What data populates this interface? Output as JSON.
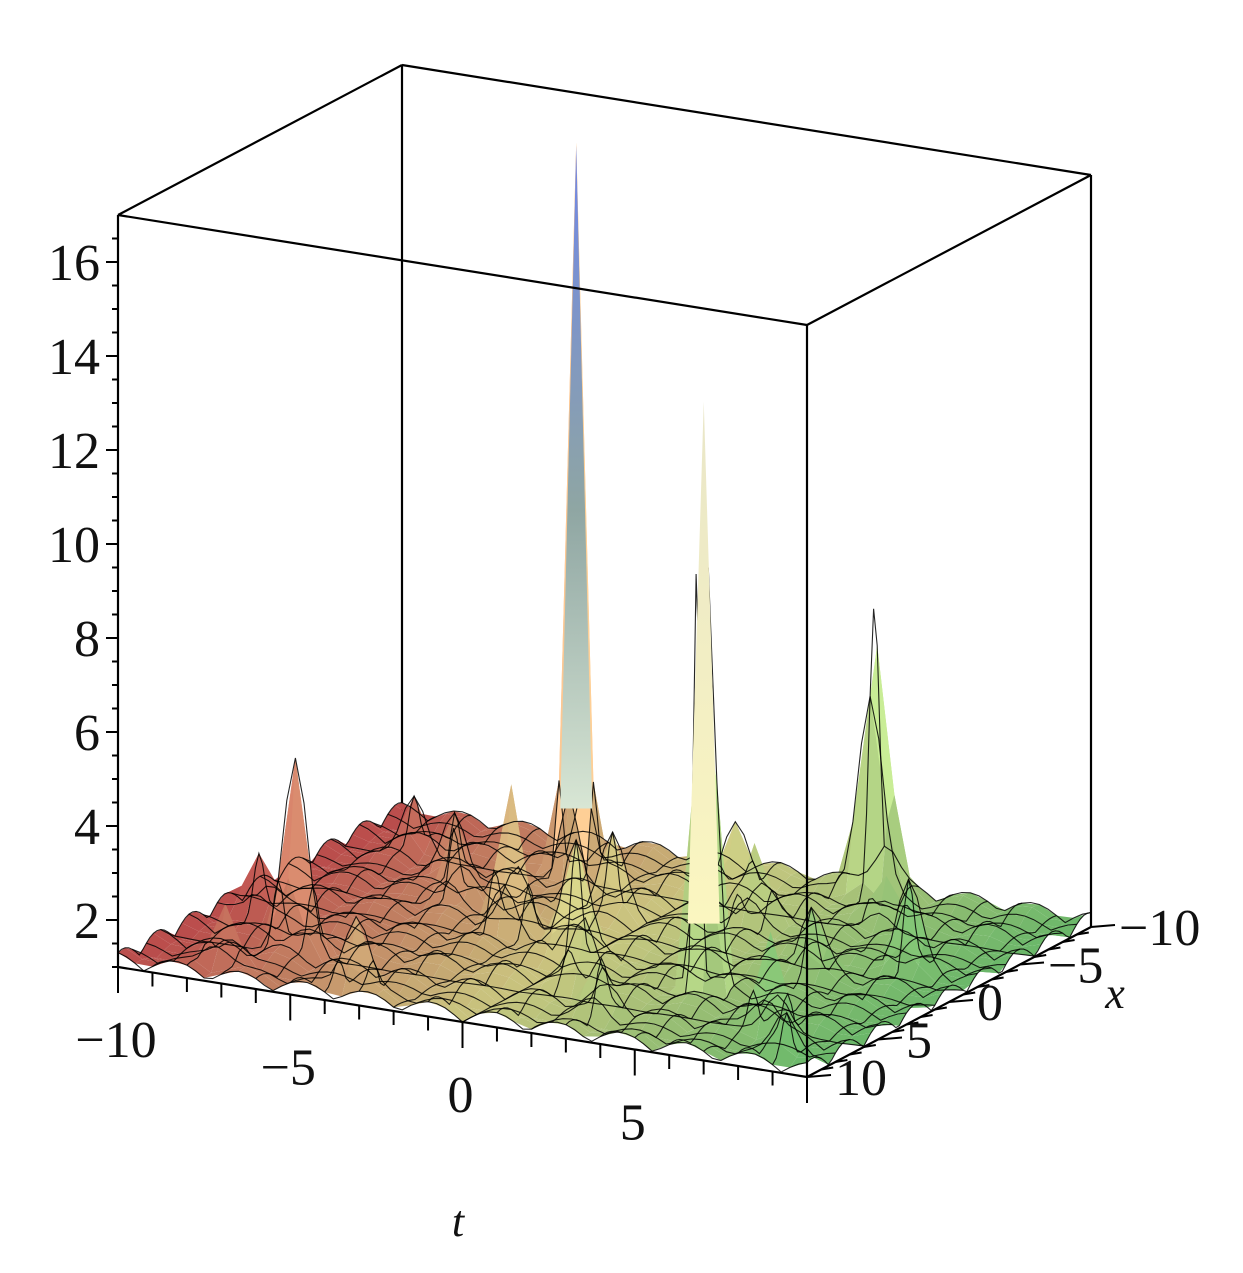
{
  "chart_data": {
    "type": "surface3d",
    "title": "",
    "xlabel": "t",
    "ylabel": "x",
    "zlabel": "",
    "t_range": [
      -10,
      10
    ],
    "x_range": [
      -10,
      10
    ],
    "z_range": [
      1,
      17
    ],
    "grid": false,
    "t_ticks": [
      {
        "value": -10,
        "label": "−10"
      },
      {
        "value": -5,
        "label": "−5"
      },
      {
        "value": 0,
        "label": "0"
      },
      {
        "value": 5,
        "label": "5"
      }
    ],
    "x_ticks": [
      {
        "value": -10,
        "label": "−10"
      },
      {
        "value": -5,
        "label": "−5"
      },
      {
        "value": 0,
        "label": "0"
      },
      {
        "value": 5,
        "label": "5"
      },
      {
        "value": 10,
        "label": "10"
      }
    ],
    "z_ticks": [
      {
        "value": 2,
        "label": "2"
      },
      {
        "value": 4,
        "label": "4"
      },
      {
        "value": 6,
        "label": "6"
      },
      {
        "value": 8,
        "label": "8"
      },
      {
        "value": 10,
        "label": "10"
      },
      {
        "value": 12,
        "label": "12"
      },
      {
        "value": 14,
        "label": "14"
      },
      {
        "value": 16,
        "label": "16"
      }
    ],
    "baseline": 1,
    "peaks": [
      {
        "t": -3.5,
        "x": -6.5,
        "z": 16.6
      },
      {
        "t": 4.2,
        "x": 3.2,
        "z": 13.6
      },
      {
        "t": 4.0,
        "x": -9.3,
        "z": 7.1
      },
      {
        "t": -6.5,
        "x": 6.0,
        "z": 5.2
      },
      {
        "t": -8.0,
        "x": -6.0,
        "z": 2.3
      },
      {
        "t": -2.5,
        "x": 0.5,
        "z": 4.0
      },
      {
        "t": 0.0,
        "x": 2.0,
        "z": 3.6
      },
      {
        "t": 7.5,
        "x": 6.5,
        "z": 3.2
      },
      {
        "t": 8.0,
        "x": -2.0,
        "z": 2.8
      },
      {
        "t": 1.5,
        "x": 5.0,
        "z": 2.4
      },
      {
        "t": -1.0,
        "x": -3.0,
        "z": 2.6
      },
      {
        "t": -5.0,
        "x": -1.5,
        "z": 2.6
      },
      {
        "t": 2.5,
        "x": -4.5,
        "z": 2.5
      },
      {
        "t": 6.0,
        "x": 0.0,
        "z": 2.3
      },
      {
        "t": -9.0,
        "x": 2.5,
        "z": 2.2
      },
      {
        "t": -7.5,
        "x": 8.5,
        "z": 2.4
      },
      {
        "t": -3.5,
        "x": 9.0,
        "z": 2.6
      },
      {
        "t": 0.5,
        "x": -8.0,
        "z": 2.3
      },
      {
        "t": 5.5,
        "x": -6.5,
        "z": 2.1
      },
      {
        "t": 9.0,
        "x": 9.0,
        "z": 2.0
      },
      {
        "t": -6.0,
        "x": -4.0,
        "z": 2.4
      },
      {
        "t": 3.0,
        "x": 7.5,
        "z": 2.0
      }
    ],
    "colormap": {
      "t_min_color": "#e05a5a",
      "t_mid_color": "#f4ef9a",
      "t_max_color": "#7fdd7f",
      "x_near_color": "#f6e85a",
      "peak_top_color": "#6f86e8"
    }
  }
}
